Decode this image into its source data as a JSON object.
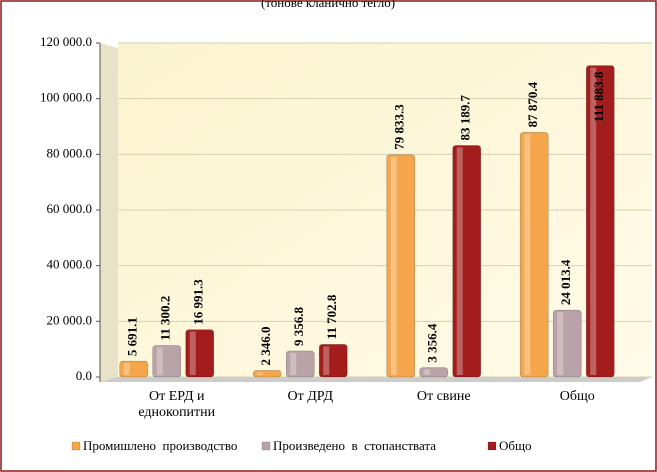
{
  "chart_data": {
    "type": "bar",
    "subtitle": "(тонове кланично тегло)",
    "categories": [
      "От ЕРД и еднокопитни",
      "От ДРД",
      "От свине",
      "Общо"
    ],
    "series": [
      {
        "name": "Промишлено  производство",
        "color": "#f5a64a",
        "values": [
          5691.1,
          2346.0,
          79833.3,
          87870.4
        ],
        "value_labels": [
          "5 691.1",
          "2 346.0",
          "79 833.3",
          "87 870.4"
        ]
      },
      {
        "name": "Произведено  в  стопанствата",
        "color": "#b9a3a8",
        "values": [
          11300.2,
          9356.8,
          3356.4,
          24013.4
        ],
        "value_labels": [
          "11 300.2",
          "9 356.8",
          "3 356.4",
          "24 013.4"
        ]
      },
      {
        "name": "Общо",
        "color": "#a31d1d",
        "values": [
          16991.3,
          11702.8,
          83189.7,
          111883.8
        ],
        "value_labels": [
          "16 991.3",
          "11 702.8",
          "83 189.7",
          "111 883.8"
        ]
      }
    ],
    "ylim": [
      0,
      120000
    ],
    "yticks": [
      {
        "value": 0,
        "label": "0.0"
      },
      {
        "value": 20000,
        "label": "20 000.0"
      },
      {
        "value": 40000,
        "label": "40 000.0"
      },
      {
        "value": 60000,
        "label": "60 000.0"
      },
      {
        "value": 80000,
        "label": "80 000.0"
      },
      {
        "value": 100000,
        "label": "100 000.0"
      },
      {
        "value": 120000,
        "label": "120 000.0"
      }
    ],
    "grid": true
  }
}
